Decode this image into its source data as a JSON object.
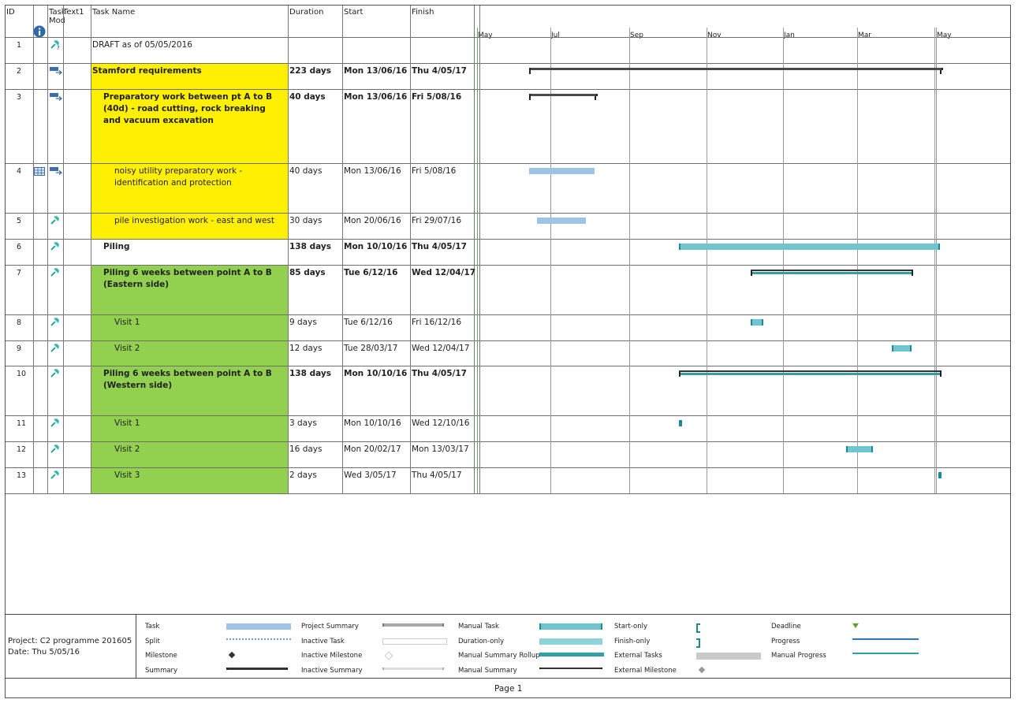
{
  "columns": {
    "id": "ID",
    "task_mode": "Task\nMod",
    "text1": "Text1",
    "task_name": "Task Name",
    "duration": "Duration",
    "start": "Start",
    "finish": "Finish"
  },
  "timescale": [
    "May",
    "Jul",
    "Sep",
    "Nov",
    "Jan",
    "Mar",
    "May"
  ],
  "colors": {
    "yellow": "#ffef00",
    "green": "#92d050",
    "task_bar": "#9dc3e6",
    "manual_task": "#70c5cf",
    "summary_bar": "#4a4a4a",
    "manual_summary_rollup": "#2f9fa8",
    "progress": "#2e75b6"
  },
  "rows": [
    {
      "id": "1",
      "mode_icon": "manual-pin-question-icon",
      "name": "DRAFT as of 05/05/2016",
      "duration": "",
      "start": "",
      "finish": "",
      "bold": false,
      "indent": 0,
      "fill": ""
    },
    {
      "id": "2",
      "mode_icon": "auto-schedule-icon",
      "name": "Stamford requirements",
      "duration": "223 days",
      "start": "Mon 13/06/16",
      "finish": "Thu 4/05/17",
      "bold": true,
      "indent": 0,
      "fill": "yellow"
    },
    {
      "id": "3",
      "mode_icon": "auto-schedule-icon",
      "name": "Preparatory work between pt A to B (40d) - road cutting, rock breaking and vacuum excavation",
      "duration": "40 days",
      "start": "Mon 13/06/16",
      "finish": "Fri 5/08/16",
      "bold": true,
      "indent": 1,
      "fill": "yellow"
    },
    {
      "id": "4",
      "info_icon": "calendar-grid-icon",
      "mode_icon": "auto-schedule-icon",
      "name": "noisy utility preparatory work - identification and protection",
      "duration": "40 days",
      "start": "Mon 13/06/16",
      "finish": "Fri 5/08/16",
      "bold": false,
      "indent": 2,
      "fill": "yellow"
    },
    {
      "id": "5",
      "mode_icon": "manual-pin-icon",
      "name": "pile investigation work - east and west",
      "duration": "30 days",
      "start": "Mon 20/06/16",
      "finish": "Fri 29/07/16",
      "bold": false,
      "indent": 2,
      "fill": "yellow"
    },
    {
      "id": "6",
      "mode_icon": "manual-pin-icon",
      "name": "Piling",
      "duration": "138 days",
      "start": "Mon 10/10/16",
      "finish": "Thu 4/05/17",
      "bold": true,
      "indent": 1,
      "fill": ""
    },
    {
      "id": "7",
      "mode_icon": "manual-pin-icon",
      "name": "Piling 6 weeks between point A to B (Eastern side)",
      "duration": "85 days",
      "start": "Tue 6/12/16",
      "finish": "Wed 12/04/17",
      "bold": true,
      "indent": 1,
      "fill": "green"
    },
    {
      "id": "8",
      "mode_icon": "manual-pin-icon",
      "name": "Visit 1",
      "duration": "9 days",
      "start": "Tue 6/12/16",
      "finish": "Fri 16/12/16",
      "bold": false,
      "indent": 2,
      "fill": "green"
    },
    {
      "id": "9",
      "mode_icon": "manual-pin-icon",
      "name": "Visit 2",
      "duration": "12 days",
      "start": "Tue 28/03/17",
      "finish": "Wed 12/04/17",
      "bold": false,
      "indent": 2,
      "fill": "green"
    },
    {
      "id": "10",
      "mode_icon": "manual-pin-icon",
      "name": "Piling 6 weeks between point A to B (Western side)",
      "duration": "138 days",
      "start": "Mon 10/10/16",
      "finish": "Thu 4/05/17",
      "bold": true,
      "indent": 1,
      "fill": "green"
    },
    {
      "id": "11",
      "mode_icon": "manual-pin-icon",
      "name": "Visit 1",
      "duration": "3 days",
      "start": "Mon 10/10/16",
      "finish": "Wed 12/10/16",
      "bold": false,
      "indent": 2,
      "fill": "green"
    },
    {
      "id": "12",
      "mode_icon": "manual-pin-icon",
      "name": "Visit 2",
      "duration": "16 days",
      "start": "Mon 20/02/17",
      "finish": "Mon 13/03/17",
      "bold": false,
      "indent": 2,
      "fill": "green"
    },
    {
      "id": "13",
      "mode_icon": "manual-pin-icon",
      "name": "Visit 3",
      "duration": "2 days",
      "start": "Wed 3/05/17",
      "finish": "Thu 4/05/17",
      "bold": false,
      "indent": 2,
      "fill": "green"
    }
  ],
  "footer": {
    "project": "Project: C2 programme 201605",
    "date": "Date: Thu 5/05/16",
    "legend": [
      [
        "Task",
        "Split",
        "Milestone",
        "Summary"
      ],
      [
        "Project Summary",
        "Inactive Task",
        "Inactive Milestone",
        "Inactive Summary"
      ],
      [
        "Manual Task",
        "Duration-only",
        "Manual Summary Rollup",
        "Manual Summary"
      ],
      [
        "Start-only",
        "Finish-only",
        "External Tasks",
        "External Milestone"
      ],
      [
        "Deadline",
        "Progress",
        "Manual Progress"
      ]
    ],
    "page": "Page 1"
  }
}
